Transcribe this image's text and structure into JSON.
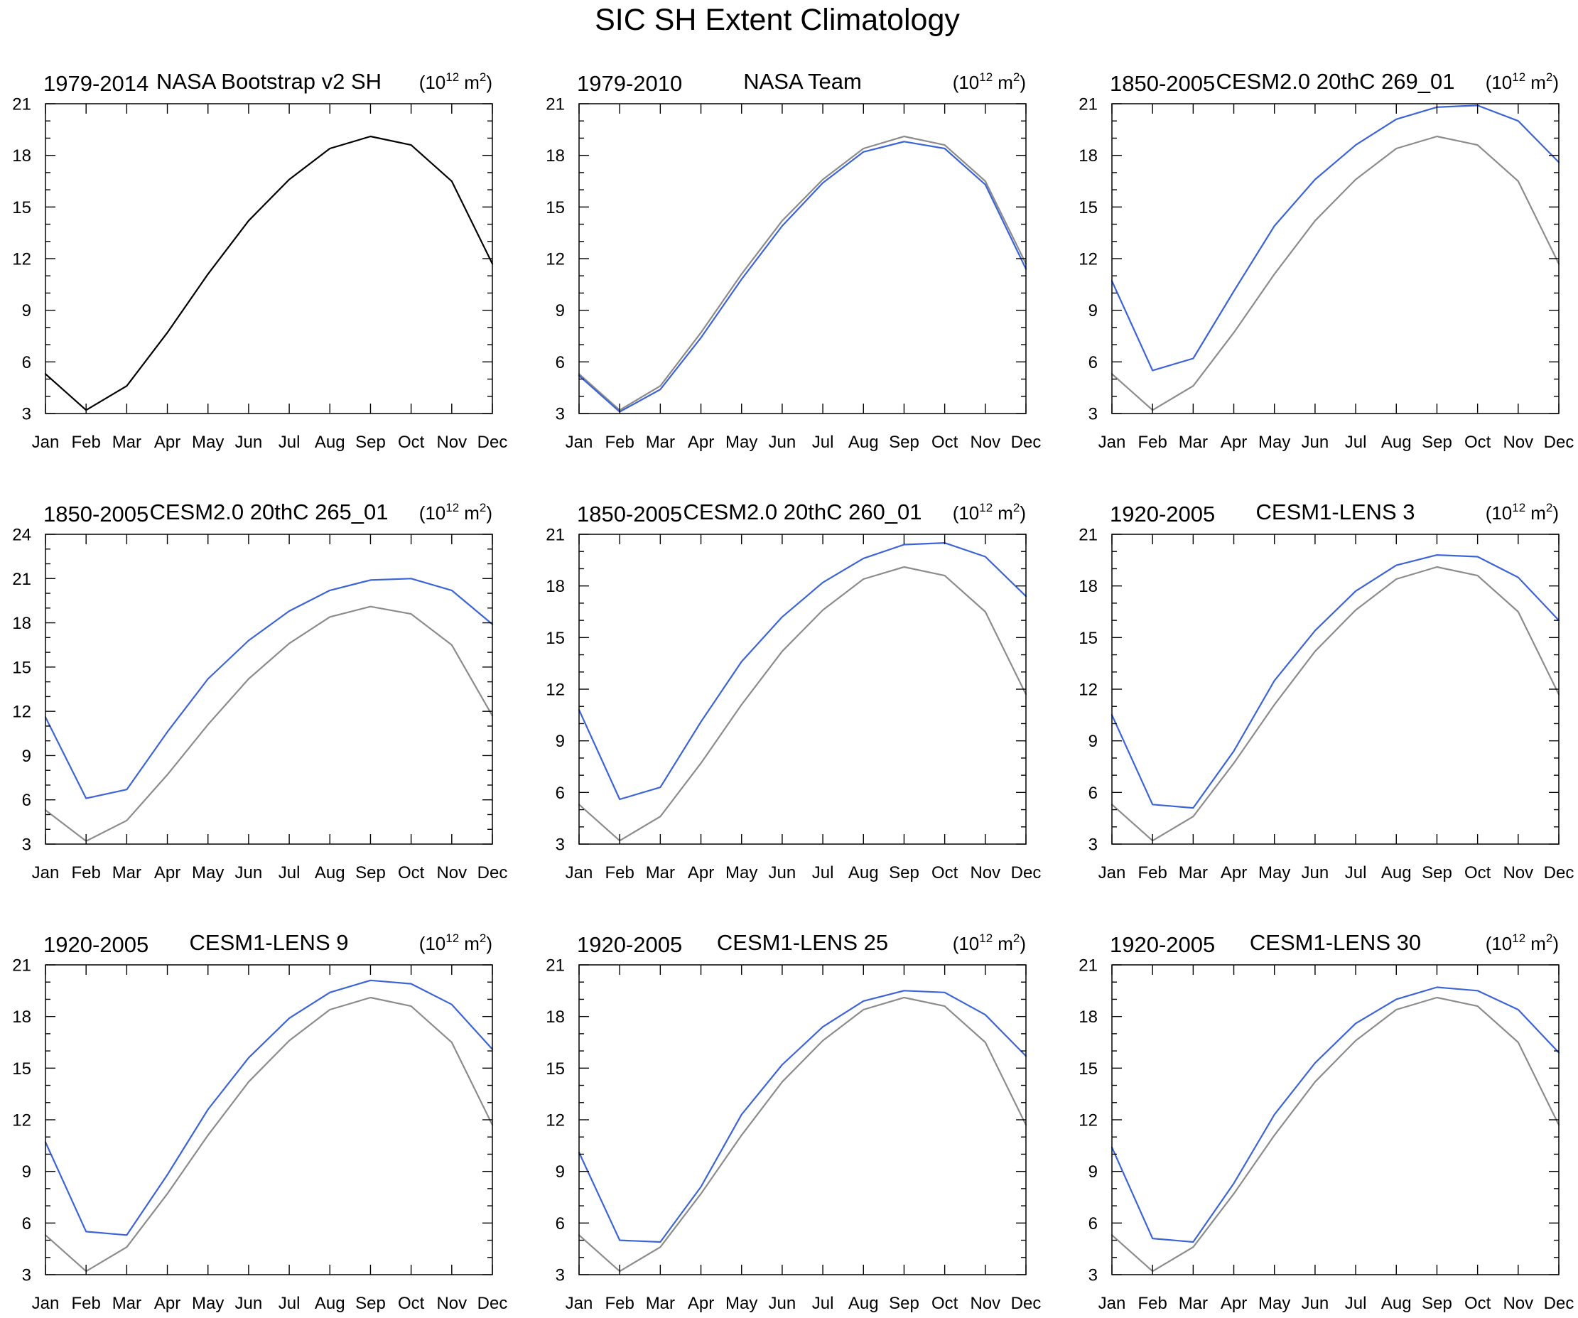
{
  "title": "SIC SH Extent Climatology",
  "units": {
    "open": "(10",
    "exp": "12",
    "unit": "m",
    "unit_exp": "2",
    "close": ")"
  },
  "chart_data": [
    {
      "type": "line",
      "period": "1979-2014",
      "title": "NASA Bootstrap v2 SH",
      "categories": [
        "Jan",
        "Feb",
        "Mar",
        "Apr",
        "May",
        "Jun",
        "Jul",
        "Aug",
        "Sep",
        "Oct",
        "Nov",
        "Dec"
      ],
      "ylim": [
        3,
        21
      ],
      "yticks": [
        3,
        6,
        9,
        12,
        15,
        18,
        21
      ],
      "series": [
        {
          "name": "NASA Bootstrap v2 SH",
          "color": "#000000",
          "values": [
            5.3,
            3.2,
            4.6,
            7.7,
            11.1,
            14.2,
            16.6,
            18.4,
            19.1,
            18.6,
            16.5,
            11.7
          ]
        }
      ]
    },
    {
      "type": "line",
      "period": "1979-2010",
      "title": "NASA Team",
      "categories": [
        "Jan",
        "Feb",
        "Mar",
        "Apr",
        "May",
        "Jun",
        "Jul",
        "Aug",
        "Sep",
        "Oct",
        "Nov",
        "Dec"
      ],
      "ylim": [
        3,
        21
      ],
      "yticks": [
        3,
        6,
        9,
        12,
        15,
        18,
        21
      ],
      "series": [
        {
          "name": "NASA Bootstrap v2 SH",
          "color": "#8c8c8c",
          "values": [
            5.3,
            3.2,
            4.6,
            7.7,
            11.1,
            14.2,
            16.6,
            18.4,
            19.1,
            18.6,
            16.5,
            11.7
          ]
        },
        {
          "name": "NASA Team",
          "color": "#3d64d6",
          "values": [
            5.2,
            3.1,
            4.4,
            7.4,
            10.8,
            13.9,
            16.4,
            18.2,
            18.8,
            18.4,
            16.3,
            11.4
          ]
        }
      ]
    },
    {
      "type": "line",
      "period": "1850-2005",
      "title": "CESM2.0 20thC 269_01",
      "categories": [
        "Jan",
        "Feb",
        "Mar",
        "Apr",
        "May",
        "Jun",
        "Jul",
        "Aug",
        "Sep",
        "Oct",
        "Nov",
        "Dec"
      ],
      "ylim": [
        3,
        21
      ],
      "yticks": [
        3,
        6,
        9,
        12,
        15,
        18,
        21
      ],
      "series": [
        {
          "name": "NASA Bootstrap v2 SH",
          "color": "#8c8c8c",
          "values": [
            5.3,
            3.2,
            4.6,
            7.7,
            11.1,
            14.2,
            16.6,
            18.4,
            19.1,
            18.6,
            16.5,
            11.7
          ]
        },
        {
          "name": "CESM2.0 20thC 269_01",
          "color": "#3d64d6",
          "values": [
            10.7,
            5.5,
            6.2,
            10.1,
            13.9,
            16.6,
            18.6,
            20.1,
            20.8,
            20.9,
            20.0,
            17.6
          ]
        }
      ]
    },
    {
      "type": "line",
      "period": "1850-2005",
      "title": "CESM2.0 20thC 265_01",
      "categories": [
        "Jan",
        "Feb",
        "Mar",
        "Apr",
        "May",
        "Jun",
        "Jul",
        "Aug",
        "Sep",
        "Oct",
        "Nov",
        "Dec"
      ],
      "ylim": [
        3,
        24
      ],
      "yticks": [
        3,
        6,
        9,
        12,
        15,
        18,
        21,
        24
      ],
      "series": [
        {
          "name": "NASA Bootstrap v2 SH",
          "color": "#8c8c8c",
          "values": [
            5.3,
            3.2,
            4.6,
            7.7,
            11.1,
            14.2,
            16.6,
            18.4,
            19.1,
            18.6,
            16.5,
            11.7
          ]
        },
        {
          "name": "CESM2.0 20thC 265_01",
          "color": "#3d64d6",
          "values": [
            11.6,
            6.1,
            6.7,
            10.6,
            14.2,
            16.8,
            18.8,
            20.2,
            20.9,
            21.0,
            20.2,
            17.9
          ]
        }
      ]
    },
    {
      "type": "line",
      "period": "1850-2005",
      "title": "CESM2.0 20thC 260_01",
      "categories": [
        "Jan",
        "Feb",
        "Mar",
        "Apr",
        "May",
        "Jun",
        "Jul",
        "Aug",
        "Sep",
        "Oct",
        "Nov",
        "Dec"
      ],
      "ylim": [
        3,
        21
      ],
      "yticks": [
        3,
        6,
        9,
        12,
        15,
        18,
        21
      ],
      "series": [
        {
          "name": "NASA Bootstrap v2 SH",
          "color": "#8c8c8c",
          "values": [
            5.3,
            3.2,
            4.6,
            7.7,
            11.1,
            14.2,
            16.6,
            18.4,
            19.1,
            18.6,
            16.5,
            11.7
          ]
        },
        {
          "name": "CESM2.0 20thC 260_01",
          "color": "#3d64d6",
          "values": [
            10.8,
            5.6,
            6.3,
            10.1,
            13.6,
            16.2,
            18.2,
            19.6,
            20.4,
            20.5,
            19.7,
            17.4
          ]
        }
      ]
    },
    {
      "type": "line",
      "period": "1920-2005",
      "title": "CESM1-LENS 3",
      "categories": [
        "Jan",
        "Feb",
        "Mar",
        "Apr",
        "May",
        "Jun",
        "Jul",
        "Aug",
        "Sep",
        "Oct",
        "Nov",
        "Dec"
      ],
      "ylim": [
        3,
        21
      ],
      "yticks": [
        3,
        6,
        9,
        12,
        15,
        18,
        21
      ],
      "series": [
        {
          "name": "NASA Bootstrap v2 SH",
          "color": "#8c8c8c",
          "values": [
            5.3,
            3.2,
            4.6,
            7.7,
            11.1,
            14.2,
            16.6,
            18.4,
            19.1,
            18.6,
            16.5,
            11.7
          ]
        },
        {
          "name": "CESM1-LENS 3",
          "color": "#3d64d6",
          "values": [
            10.5,
            5.3,
            5.1,
            8.4,
            12.5,
            15.4,
            17.7,
            19.2,
            19.8,
            19.7,
            18.5,
            16.0
          ]
        }
      ]
    },
    {
      "type": "line",
      "period": "1920-2005",
      "title": "CESM1-LENS 9",
      "categories": [
        "Jan",
        "Feb",
        "Mar",
        "Apr",
        "May",
        "Jun",
        "Jul",
        "Aug",
        "Sep",
        "Oct",
        "Nov",
        "Dec"
      ],
      "ylim": [
        3,
        21
      ],
      "yticks": [
        3,
        6,
        9,
        12,
        15,
        18,
        21
      ],
      "series": [
        {
          "name": "NASA Bootstrap v2 SH",
          "color": "#8c8c8c",
          "values": [
            5.3,
            3.2,
            4.6,
            7.7,
            11.1,
            14.2,
            16.6,
            18.4,
            19.1,
            18.6,
            16.5,
            11.7
          ]
        },
        {
          "name": "CESM1-LENS 9",
          "color": "#3d64d6",
          "values": [
            10.7,
            5.5,
            5.3,
            8.8,
            12.6,
            15.6,
            17.9,
            19.4,
            20.1,
            19.9,
            18.7,
            16.1
          ]
        }
      ]
    },
    {
      "type": "line",
      "period": "1920-2005",
      "title": "CESM1-LENS 25",
      "categories": [
        "Jan",
        "Feb",
        "Mar",
        "Apr",
        "May",
        "Jun",
        "Jul",
        "Aug",
        "Sep",
        "Oct",
        "Nov",
        "Dec"
      ],
      "ylim": [
        3,
        21
      ],
      "yticks": [
        3,
        6,
        9,
        12,
        15,
        18,
        21
      ],
      "series": [
        {
          "name": "NASA Bootstrap v2 SH",
          "color": "#8c8c8c",
          "values": [
            5.3,
            3.2,
            4.6,
            7.7,
            11.1,
            14.2,
            16.6,
            18.4,
            19.1,
            18.6,
            16.5,
            11.7
          ]
        },
        {
          "name": "CESM1-LENS 25",
          "color": "#3d64d6",
          "values": [
            10.1,
            5.0,
            4.9,
            8.1,
            12.3,
            15.2,
            17.4,
            18.9,
            19.5,
            19.4,
            18.1,
            15.7
          ]
        }
      ]
    },
    {
      "type": "line",
      "period": "1920-2005",
      "title": "CESM1-LENS 30",
      "categories": [
        "Jan",
        "Feb",
        "Mar",
        "Apr",
        "May",
        "Jun",
        "Jul",
        "Aug",
        "Sep",
        "Oct",
        "Nov",
        "Dec"
      ],
      "ylim": [
        3,
        21
      ],
      "yticks": [
        3,
        6,
        9,
        12,
        15,
        18,
        21
      ],
      "series": [
        {
          "name": "NASA Bootstrap v2 SH",
          "color": "#8c8c8c",
          "values": [
            5.3,
            3.2,
            4.6,
            7.7,
            11.1,
            14.2,
            16.6,
            18.4,
            19.1,
            18.6,
            16.5,
            11.7
          ]
        },
        {
          "name": "CESM1-LENS 30",
          "color": "#3d64d6",
          "values": [
            10.4,
            5.1,
            4.9,
            8.3,
            12.3,
            15.3,
            17.6,
            19.0,
            19.7,
            19.5,
            18.4,
            15.9
          ]
        }
      ]
    }
  ]
}
